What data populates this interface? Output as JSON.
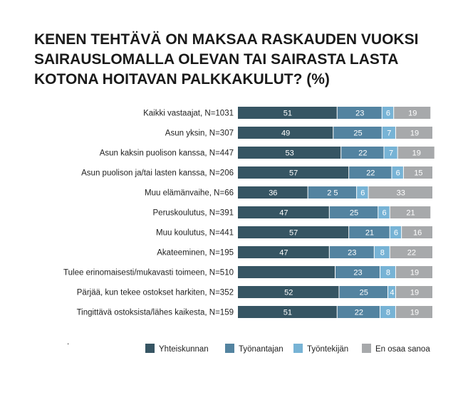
{
  "title_lines": [
    "KENEN TEHTÄVÄ ON MAKSAA RASKAUDEN VUOKSI",
    "SAIRAUSLOMALLA OLEVAN TAI SAIRASTA LASTA",
    "KOTONA HOITAVAN PALKKAKULUT? (%)"
  ],
  "chart_data": {
    "type": "bar",
    "orientation": "horizontal",
    "stacked": true,
    "title": "KENEN TEHTÄVÄ ON MAKSAA RASKAUDEN VUOKSI SAIRAUSLOMALLA OLEVAN TAI SAIRASTA LASTA KOTONA HOITAVAN PALKKAKULUT? (%)",
    "xlim": [
      0,
      100
    ],
    "legend_position": "bottom",
    "grid": false,
    "categories": [
      "Kaikki vastaajat, N=1031",
      "Asun yksin, N=307",
      "Asun kaksin puolison kanssa, N=447",
      "Asun puolison ja/tai lasten kanssa, N=206",
      "Muu elämänvaihe, N=66",
      "Peruskoulutus, N=391",
      "Muu koulutus, N=441",
      "Akateeminen, N=195",
      "Tulee erinomaisesti/mukavasti toimeen, N=510",
      "Pärjää, kun tekee ostokset harkiten, N=352",
      "Tingittävä ostoksista/lähes kaikesta, N=159"
    ],
    "series": [
      {
        "name": "Yhteiskunnan",
        "color": "#365563",
        "values": [
          51,
          49,
          53,
          57,
          36,
          47,
          57,
          47,
          50,
          52,
          51
        ],
        "labels": [
          "51",
          "49",
          "53",
          "57",
          "36",
          "47",
          "57",
          "47",
          "",
          "52",
          "51"
        ]
      },
      {
        "name": "Työnantajan",
        "color": "#5383a0",
        "values": [
          23,
          25,
          22,
          22,
          25,
          25,
          21,
          23,
          23,
          25,
          22
        ],
        "labels": [
          "23",
          "25",
          "22",
          "22",
          "2 5",
          "25",
          "21",
          "23",
          "23",
          "25",
          "22"
        ]
      },
      {
        "name": "Työntekijän",
        "color": "#77b3d5",
        "values": [
          6,
          7,
          7,
          6,
          6,
          6,
          6,
          8,
          8,
          4,
          8
        ],
        "labels": [
          "6",
          "7",
          "7",
          "6",
          "6",
          "6",
          "6",
          "8",
          "8",
          "4",
          "8"
        ]
      },
      {
        "name": "En osaa sanoa",
        "color": "#a7a9ab",
        "values": [
          19,
          19,
          19,
          15,
          33,
          21,
          16,
          22,
          19,
          19,
          19
        ],
        "labels": [
          "19",
          "19",
          "19",
          "15",
          "33",
          "21",
          "16",
          "22",
          "19",
          "19",
          "19"
        ]
      }
    ]
  },
  "footnote": "."
}
